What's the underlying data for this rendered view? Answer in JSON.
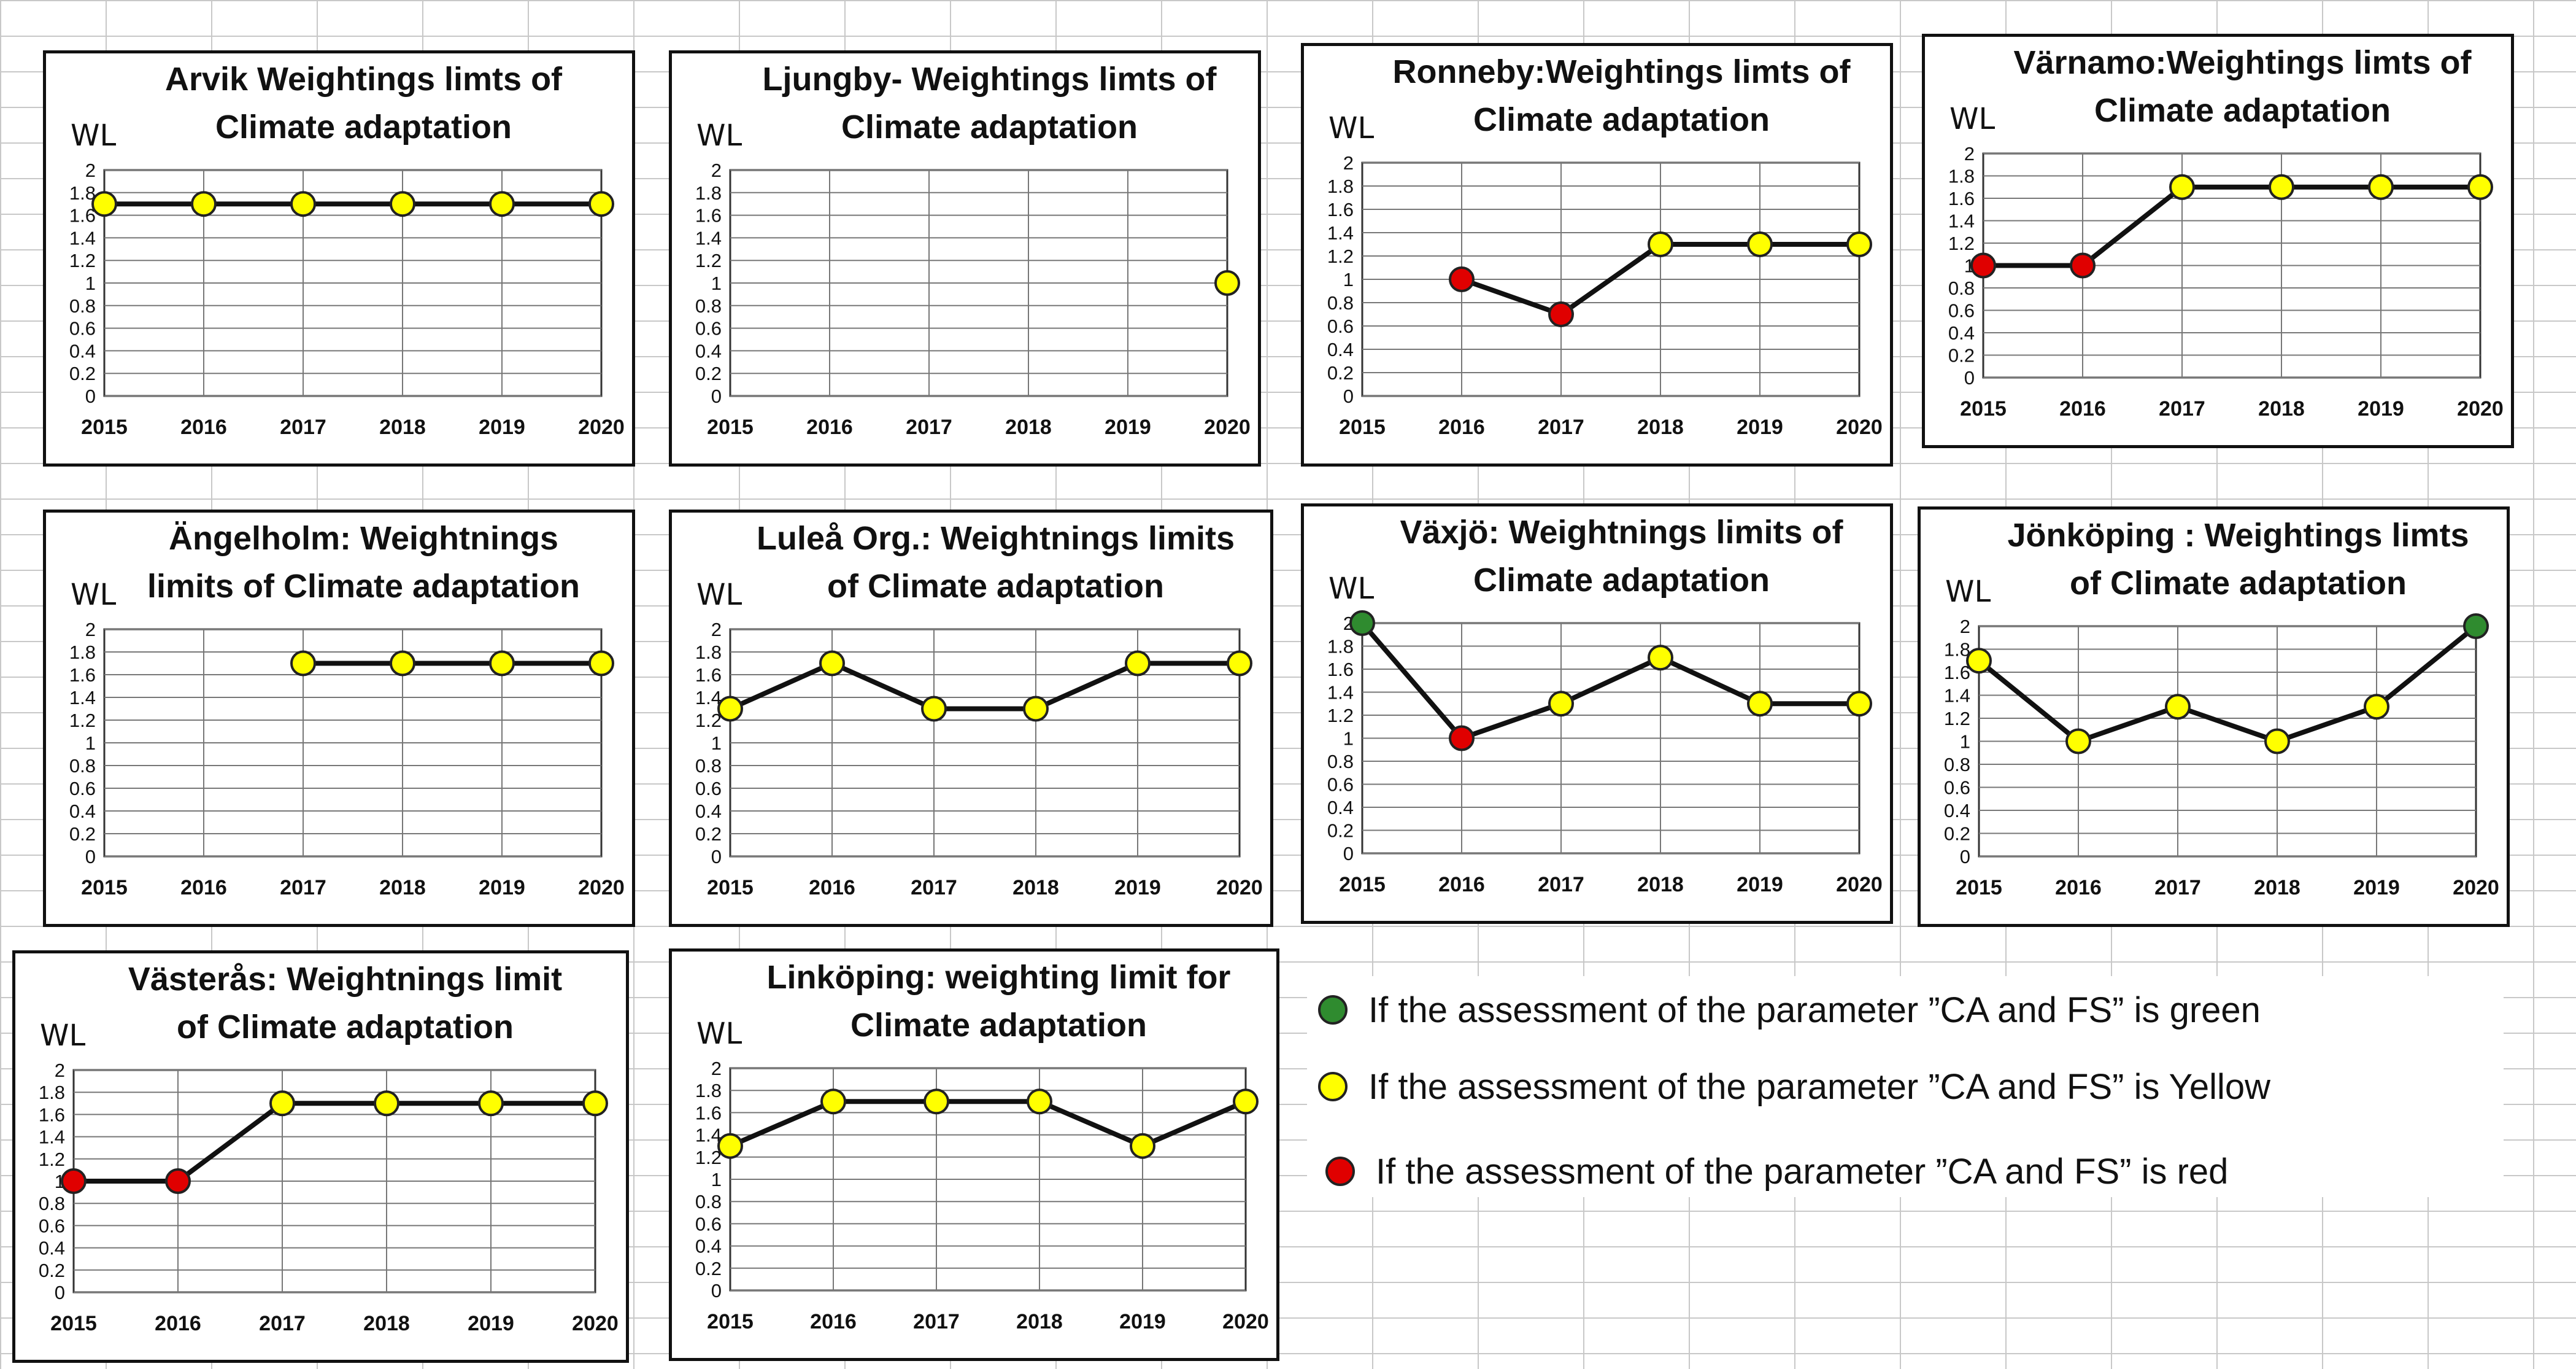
{
  "colors": {
    "green": "#2f8b2f",
    "yellow": "#ffff00",
    "red": "#e00000"
  },
  "axis": {
    "y_label": "WL",
    "y_ticks": [
      "0",
      "0.2",
      "0.4",
      "0.6",
      "0.8",
      "1",
      "1.2",
      "1.4",
      "1.6",
      "1.8",
      "2"
    ],
    "ylim": [
      0,
      2
    ]
  },
  "chart_data": [
    {
      "type": "line",
      "title_lines": [
        "Arvik Weightings limts of",
        "Climate adaptation"
      ],
      "categories": [
        "2015",
        "2016",
        "2017",
        "2018",
        "2019",
        "2020"
      ],
      "values": [
        1.7,
        1.7,
        1.7,
        1.7,
        1.7,
        1.7
      ],
      "point_colors": [
        "yellow",
        "yellow",
        "yellow",
        "yellow",
        "yellow",
        "yellow"
      ],
      "ylabel": "WL",
      "ylim": [
        0,
        2
      ]
    },
    {
      "type": "line",
      "title_lines": [
        "Ljungby- Weightings limts of",
        "Climate adaptation"
      ],
      "categories": [
        "2015",
        "2016",
        "2017",
        "2018",
        "2019",
        "2020"
      ],
      "values": [
        null,
        null,
        null,
        null,
        null,
        1.0
      ],
      "point_colors": [
        null,
        null,
        null,
        null,
        null,
        "yellow"
      ],
      "ylabel": "WL",
      "ylim": [
        0,
        2
      ]
    },
    {
      "type": "line",
      "title_lines": [
        "Ronneby:Weightings limts of",
        "Climate adaptation"
      ],
      "categories": [
        "2015",
        "2016",
        "2017",
        "2018",
        "2019",
        "2020"
      ],
      "values": [
        null,
        1.0,
        0.7,
        1.3,
        1.3,
        1.3
      ],
      "point_colors": [
        null,
        "red",
        "red",
        "yellow",
        "yellow",
        "yellow"
      ],
      "ylabel": "WL",
      "ylim": [
        0,
        2
      ]
    },
    {
      "type": "line",
      "title_lines": [
        "Värnamo:Weightings limts of",
        "Climate adaptation"
      ],
      "categories": [
        "2015",
        "2016",
        "2017",
        "2018",
        "2019",
        "2020"
      ],
      "values": [
        1.0,
        1.0,
        1.7,
        1.7,
        1.7,
        1.7
      ],
      "point_colors": [
        "red",
        "red",
        "yellow",
        "yellow",
        "yellow",
        "yellow"
      ],
      "ylabel": "WL",
      "ylim": [
        0,
        2
      ]
    },
    {
      "type": "line",
      "title_lines": [
        "Ängelholm: Weightnings",
        "limits of Climate adaptation"
      ],
      "categories": [
        "2015",
        "2016",
        "2017",
        "2018",
        "2019",
        "2020"
      ],
      "values": [
        null,
        null,
        1.7,
        1.7,
        1.7,
        1.7
      ],
      "point_colors": [
        null,
        null,
        "yellow",
        "yellow",
        "yellow",
        "yellow"
      ],
      "ylabel": "WL",
      "ylim": [
        0,
        2
      ]
    },
    {
      "type": "line",
      "title_lines": [
        "Luleå Org.: Weightnings limits",
        "of Climate adaptation"
      ],
      "categories": [
        "2015",
        "2016",
        "2017",
        "2018",
        "2019",
        "2020"
      ],
      "values": [
        1.3,
        1.7,
        1.3,
        1.3,
        1.7,
        1.7
      ],
      "point_colors": [
        "yellow",
        "yellow",
        "yellow",
        "yellow",
        "yellow",
        "yellow"
      ],
      "ylabel": "WL",
      "ylim": [
        0,
        2
      ]
    },
    {
      "type": "line",
      "title_lines": [
        "Växjö: Weightnings limits of",
        "Climate adaptation"
      ],
      "categories": [
        "2015",
        "2016",
        "2017",
        "2018",
        "2019",
        "2020"
      ],
      "values": [
        2.0,
        1.0,
        1.3,
        1.7,
        1.3,
        1.3
      ],
      "point_colors": [
        "green",
        "red",
        "yellow",
        "yellow",
        "yellow",
        "yellow"
      ],
      "ylabel": "WL",
      "ylim": [
        0,
        2
      ]
    },
    {
      "type": "line",
      "title_lines": [
        "Jönköping : Weightings limts",
        "of Climate adaptation"
      ],
      "categories": [
        "2015",
        "2016",
        "2017",
        "2018",
        "2019",
        "2020"
      ],
      "values": [
        1.7,
        1.0,
        1.3,
        1.0,
        1.3,
        2.0
      ],
      "point_colors": [
        "yellow",
        "yellow",
        "yellow",
        "yellow",
        "yellow",
        "green"
      ],
      "ylabel": "WL",
      "ylim": [
        0,
        2
      ]
    },
    {
      "type": "line",
      "title_lines": [
        "Västerås: Weightnings limit",
        "of Climate adaptation"
      ],
      "categories": [
        "2015",
        "2016",
        "2017",
        "2018",
        "2019",
        "2020"
      ],
      "values": [
        1.0,
        1.0,
        1.7,
        1.7,
        1.7,
        1.7
      ],
      "point_colors": [
        "red",
        "red",
        "yellow",
        "yellow",
        "yellow",
        "yellow"
      ],
      "ylabel": "WL",
      "ylim": [
        0,
        2
      ]
    },
    {
      "type": "line",
      "title_lines": [
        "Linköping: weighting limit for",
        "Climate adaptation"
      ],
      "categories": [
        "2015",
        "2016",
        "2017",
        "2018",
        "2019",
        "2020"
      ],
      "values": [
        1.3,
        1.7,
        1.7,
        1.7,
        1.3,
        1.7
      ],
      "point_colors": [
        "yellow",
        "yellow",
        "yellow",
        "yellow",
        "yellow",
        "yellow"
      ],
      "ylabel": "WL",
      "ylim": [
        0,
        2
      ]
    }
  ],
  "legend": [
    {
      "color": "green",
      "text": "If the assessment  of the parameter ”CA and FS” is green"
    },
    {
      "color": "yellow",
      "text": "If the assessment  of the parameter ”CA and FS” is Yellow"
    },
    {
      "color": "red",
      "text": "If the assessment  of the parameter ”CA and FS” is red"
    }
  ]
}
